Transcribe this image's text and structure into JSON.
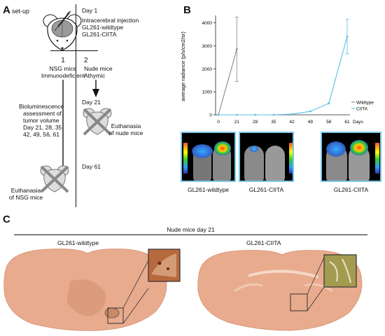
{
  "panelA": {
    "letter": "A",
    "title": "set-up",
    "day1": "Day 1",
    "injection": [
      "Intracerebral injection",
      "GL261-wildtype",
      "GL261-CIITA"
    ],
    "arm1_num": "1",
    "arm1_label": [
      "NSG mice",
      "Immunodeficient"
    ],
    "arm2_num": "2",
    "arm2_label": [
      "Nude mice",
      "Athymic"
    ],
    "biolum": [
      "Bioluminescence",
      "assessment of",
      "tumor volume",
      "Day 21, 28, 35",
      "42, 49, 56, 61"
    ],
    "day21": "Day 21",
    "euth_nude": [
      "Euthanasia",
      "of nude mice"
    ],
    "day61": "Day 61",
    "euth_nsg": [
      "Euthanasia",
      "of NSG mice"
    ]
  },
  "panelB": {
    "letter": "B",
    "images_labels": [
      "GL261-wildtype",
      "GL261-CIITA",
      "GL261-CIITA"
    ]
  },
  "chart_data": {
    "type": "line",
    "ylabel": "average radiance (p/s/cm2/sr)",
    "xlabel": "Days",
    "x": [
      0,
      21,
      28,
      35,
      42,
      49,
      56,
      61
    ],
    "ylim": [
      0,
      4200
    ],
    "yticks": [
      0,
      1000,
      2000,
      3000,
      4000
    ],
    "legend_position": "lower-right",
    "series": [
      {
        "name": "Wildtype",
        "color": "#888888",
        "x": [
          0,
          21
        ],
        "values": [
          0,
          2850
        ],
        "err": [
          0,
          1400
        ]
      },
      {
        "name": "CIITA",
        "color": "#5bbfe8",
        "x": [
          0,
          21,
          28,
          35,
          42,
          49,
          56,
          61
        ],
        "values": [
          0,
          0,
          0,
          0,
          30,
          150,
          500,
          3400
        ],
        "err": [
          0,
          0,
          0,
          0,
          0,
          0,
          0,
          750
        ]
      }
    ]
  },
  "panelC": {
    "letter": "C",
    "header": "Nude mice day 21",
    "left_label": "GL261-wildtype",
    "right_label": "GL261-CIITA"
  },
  "colors": {
    "accent": "#5bbfe8",
    "wildtype": "#888888",
    "tissue": "#e8a58a",
    "inset": "#9c8f3a"
  }
}
